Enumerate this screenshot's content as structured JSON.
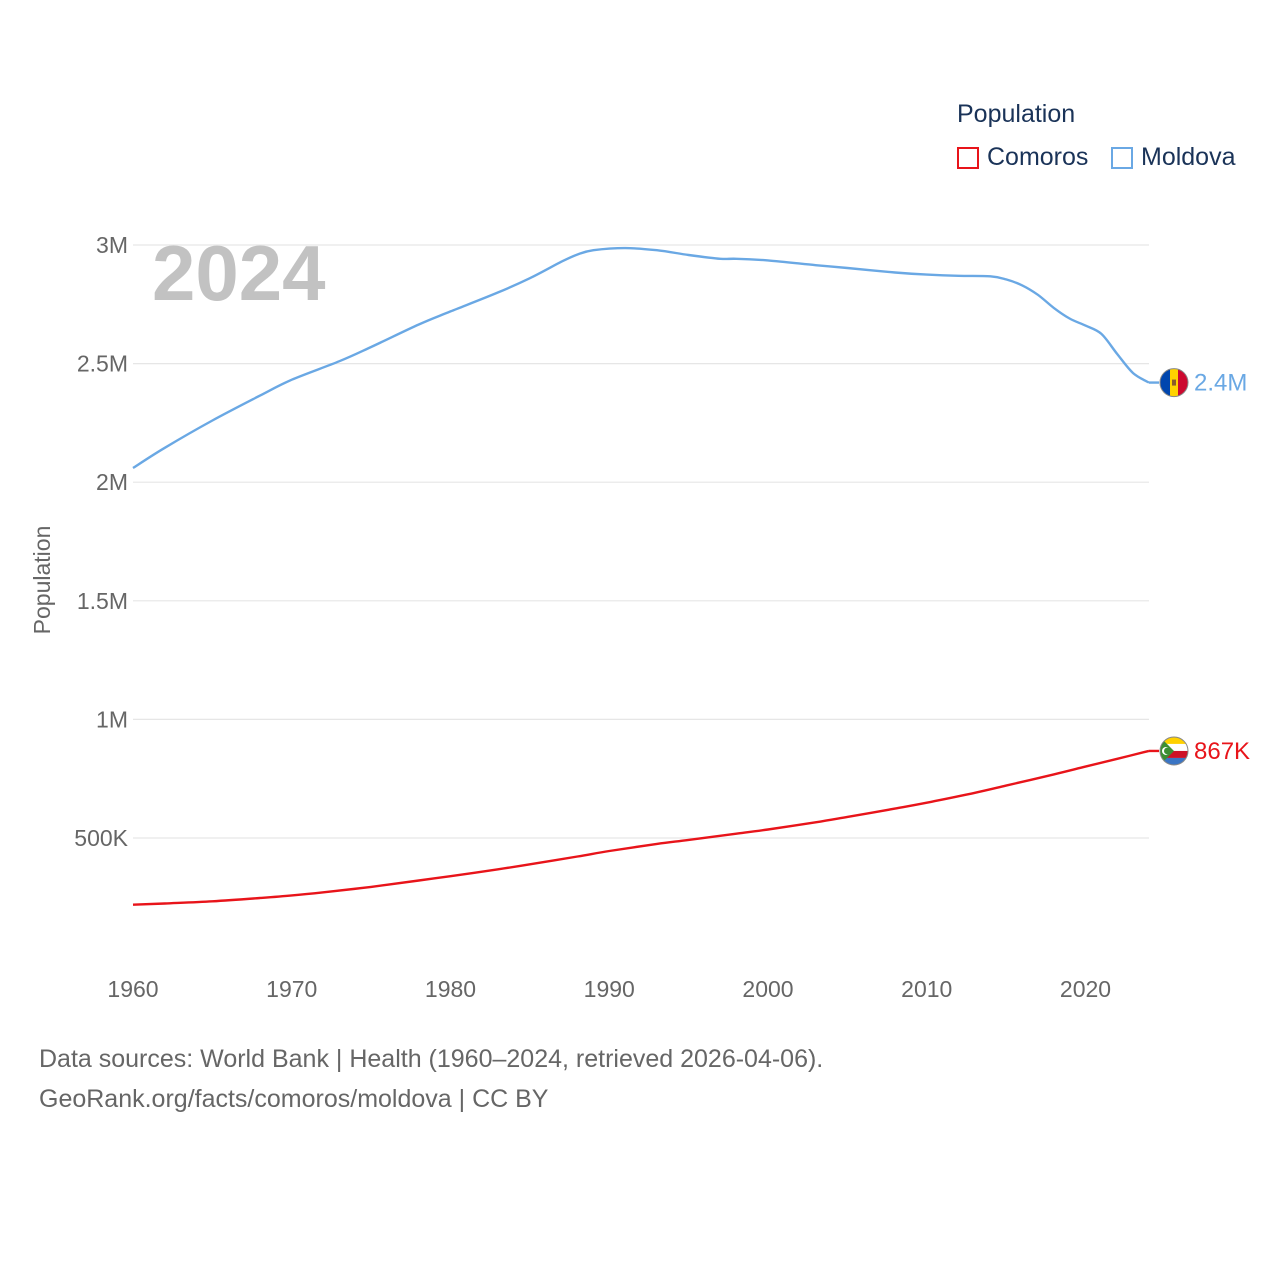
{
  "chart_data": {
    "type": "line",
    "title": "Population",
    "year_watermark": "2024",
    "xlabel": "",
    "ylabel": "Population",
    "xlim": [
      1960,
      2024
    ],
    "ylim": [
      200000,
      3100000
    ],
    "x_ticks": [
      1960,
      1970,
      1980,
      1990,
      2000,
      2010,
      2020
    ],
    "y_ticks": [
      {
        "value": 500000,
        "label": "500K"
      },
      {
        "value": 1000000,
        "label": "1M"
      },
      {
        "value": 1500000,
        "label": "1.5M"
      },
      {
        "value": 2000000,
        "label": "2M"
      },
      {
        "value": 2500000,
        "label": "2.5M"
      },
      {
        "value": 3000000,
        "label": "3M"
      }
    ],
    "grid": true,
    "legend_title": "Population",
    "legend_position": "top-right",
    "series": [
      {
        "name": "Comoros",
        "color": "#e8141a",
        "end_label": "867K",
        "flag_icon": "comoros-flag-icon",
        "points": [
          [
            1960,
            219000
          ],
          [
            1962,
            224000
          ],
          [
            1965,
            233000
          ],
          [
            1968,
            247000
          ],
          [
            1970,
            258000
          ],
          [
            1972,
            271000
          ],
          [
            1975,
            294000
          ],
          [
            1978,
            321000
          ],
          [
            1980,
            339000
          ],
          [
            1983,
            368000
          ],
          [
            1985,
            389000
          ],
          [
            1988,
            422000
          ],
          [
            1990,
            445000
          ],
          [
            1993,
            475000
          ],
          [
            1995,
            492000
          ],
          [
            1998,
            518000
          ],
          [
            2000,
            536000
          ],
          [
            2003,
            566000
          ],
          [
            2005,
            589000
          ],
          [
            2008,
            624000
          ],
          [
            2010,
            649000
          ],
          [
            2013,
            690000
          ],
          [
            2015,
            721000
          ],
          [
            2018,
            768000
          ],
          [
            2020,
            801000
          ],
          [
            2022,
            834000
          ],
          [
            2024,
            867000
          ]
        ]
      },
      {
        "name": "Moldova",
        "color": "#6aa8e4",
        "end_label": "2.4M",
        "flag_icon": "moldova-flag-icon",
        "points": [
          [
            1960,
            2060000
          ],
          [
            1962,
            2145000
          ],
          [
            1965,
            2260000
          ],
          [
            1968,
            2365000
          ],
          [
            1970,
            2432000
          ],
          [
            1973,
            2510000
          ],
          [
            1975,
            2570000
          ],
          [
            1978,
            2665000
          ],
          [
            1980,
            2720000
          ],
          [
            1983,
            2800000
          ],
          [
            1985,
            2860000
          ],
          [
            1987,
            2930000
          ],
          [
            1988,
            2960000
          ],
          [
            1989,
            2978000
          ],
          [
            1991,
            2987000
          ],
          [
            1993,
            2978000
          ],
          [
            1995,
            2958000
          ],
          [
            1997,
            2942000
          ],
          [
            1998,
            2942000
          ],
          [
            2000,
            2935000
          ],
          [
            2003,
            2915000
          ],
          [
            2005,
            2903000
          ],
          [
            2008,
            2884000
          ],
          [
            2010,
            2875000
          ],
          [
            2012,
            2870000
          ],
          [
            2014,
            2868000
          ],
          [
            2015,
            2855000
          ],
          [
            2016,
            2830000
          ],
          [
            2017,
            2790000
          ],
          [
            2018,
            2735000
          ],
          [
            2019,
            2690000
          ],
          [
            2020,
            2660000
          ],
          [
            2021,
            2625000
          ],
          [
            2022,
            2540000
          ],
          [
            2023,
            2460000
          ],
          [
            2024,
            2420000
          ]
        ]
      }
    ]
  },
  "footer": {
    "source_line": "Data sources: World Bank | Health (1960–2024, retrieved 2026-04-06).",
    "credit_line": "GeoRank.org/facts/comoros/moldova | CC BY"
  }
}
